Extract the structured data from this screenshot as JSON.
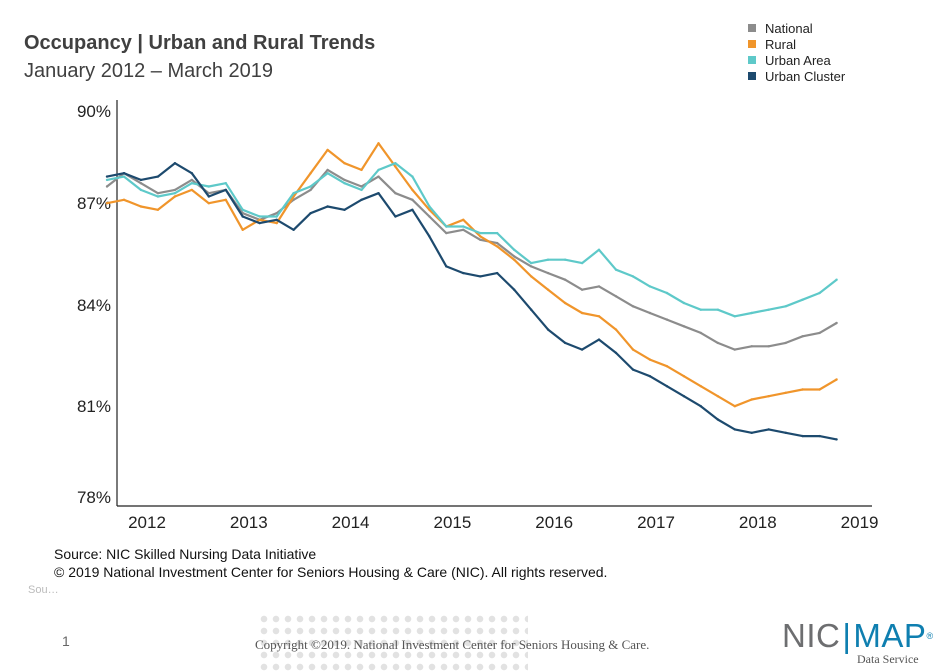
{
  "header": {
    "title": "Occupancy | Urban and Rural Trends",
    "subtitle": "January 2012 – March 2019"
  },
  "legend": [
    {
      "name": "National",
      "color": "#8c8c8c"
    },
    {
      "name": "Rural",
      "color": "#f0952b"
    },
    {
      "name": "Urban Area",
      "color": "#5ec9c9"
    },
    {
      "name": "Urban Cluster",
      "color": "#1d4a6e"
    }
  ],
  "chart_data": {
    "type": "line",
    "title": "Occupancy | Urban and Rural Trends",
    "subtitle": "January 2012 – March 2019",
    "x_start": "2012-01",
    "x_end": "2019-03",
    "x_ticks": [
      "2012",
      "2013",
      "2014",
      "2015",
      "2016",
      "2017",
      "2018",
      "2019"
    ],
    "y_ticks": [
      "78%",
      "81%",
      "84%",
      "87%",
      "90%"
    ],
    "ylim": [
      78,
      90
    ],
    "grid": false,
    "legend_position": "top-right",
    "series": [
      {
        "name": "National",
        "color": "#8c8c8c",
        "values": [
          {
            "x": "2012-01",
            "y": 87.7
          },
          {
            "x": "2012-03",
            "y": 88.1
          },
          {
            "x": "2012-05",
            "y": 87.8
          },
          {
            "x": "2012-07",
            "y": 87.5
          },
          {
            "x": "2012-09",
            "y": 87.6
          },
          {
            "x": "2012-11",
            "y": 87.9
          },
          {
            "x": "2013-01",
            "y": 87.5
          },
          {
            "x": "2013-03",
            "y": 87.6
          },
          {
            "x": "2013-05",
            "y": 86.9
          },
          {
            "x": "2013-07",
            "y": 86.7
          },
          {
            "x": "2013-09",
            "y": 86.9
          },
          {
            "x": "2013-11",
            "y": 87.3
          },
          {
            "x": "2014-01",
            "y": 87.6
          },
          {
            "x": "2014-03",
            "y": 88.2
          },
          {
            "x": "2014-05",
            "y": 87.9
          },
          {
            "x": "2014-07",
            "y": 87.7
          },
          {
            "x": "2014-09",
            "y": 88.0
          },
          {
            "x": "2014-11",
            "y": 87.5
          },
          {
            "x": "2015-01",
            "y": 87.3
          },
          {
            "x": "2015-03",
            "y": 86.8
          },
          {
            "x": "2015-05",
            "y": 86.3
          },
          {
            "x": "2015-07",
            "y": 86.4
          },
          {
            "x": "2015-09",
            "y": 86.1
          },
          {
            "x": "2015-11",
            "y": 86.0
          },
          {
            "x": "2016-01",
            "y": 85.6
          },
          {
            "x": "2016-03",
            "y": 85.3
          },
          {
            "x": "2016-05",
            "y": 85.1
          },
          {
            "x": "2016-07",
            "y": 84.9
          },
          {
            "x": "2016-09",
            "y": 84.6
          },
          {
            "x": "2016-11",
            "y": 84.7
          },
          {
            "x": "2017-01",
            "y": 84.4
          },
          {
            "x": "2017-03",
            "y": 84.1
          },
          {
            "x": "2017-05",
            "y": 83.9
          },
          {
            "x": "2017-07",
            "y": 83.7
          },
          {
            "x": "2017-09",
            "y": 83.5
          },
          {
            "x": "2017-11",
            "y": 83.3
          },
          {
            "x": "2018-01",
            "y": 83.0
          },
          {
            "x": "2018-03",
            "y": 82.8
          },
          {
            "x": "2018-05",
            "y": 82.9
          },
          {
            "x": "2018-07",
            "y": 82.9
          },
          {
            "x": "2018-09",
            "y": 83.0
          },
          {
            "x": "2018-11",
            "y": 83.2
          },
          {
            "x": "2019-01",
            "y": 83.3
          },
          {
            "x": "2019-03",
            "y": 83.6
          }
        ]
      },
      {
        "name": "Rural",
        "color": "#f0952b",
        "values": [
          {
            "x": "2012-01",
            "y": 87.2
          },
          {
            "x": "2012-03",
            "y": 87.3
          },
          {
            "x": "2012-05",
            "y": 87.1
          },
          {
            "x": "2012-07",
            "y": 87.0
          },
          {
            "x": "2012-09",
            "y": 87.4
          },
          {
            "x": "2012-11",
            "y": 87.6
          },
          {
            "x": "2013-01",
            "y": 87.2
          },
          {
            "x": "2013-03",
            "y": 87.3
          },
          {
            "x": "2013-05",
            "y": 86.4
          },
          {
            "x": "2013-07",
            "y": 86.7
          },
          {
            "x": "2013-09",
            "y": 86.6
          },
          {
            "x": "2013-11",
            "y": 87.4
          },
          {
            "x": "2014-01",
            "y": 88.1
          },
          {
            "x": "2014-03",
            "y": 88.8
          },
          {
            "x": "2014-05",
            "y": 88.4
          },
          {
            "x": "2014-07",
            "y": 88.2
          },
          {
            "x": "2014-09",
            "y": 89.0
          },
          {
            "x": "2014-11",
            "y": 88.3
          },
          {
            "x": "2015-01",
            "y": 87.6
          },
          {
            "x": "2015-03",
            "y": 87.0
          },
          {
            "x": "2015-05",
            "y": 86.5
          },
          {
            "x": "2015-07",
            "y": 86.7
          },
          {
            "x": "2015-09",
            "y": 86.2
          },
          {
            "x": "2015-11",
            "y": 85.9
          },
          {
            "x": "2016-01",
            "y": 85.5
          },
          {
            "x": "2016-03",
            "y": 85.0
          },
          {
            "x": "2016-05",
            "y": 84.6
          },
          {
            "x": "2016-07",
            "y": 84.2
          },
          {
            "x": "2016-09",
            "y": 83.9
          },
          {
            "x": "2016-11",
            "y": 83.8
          },
          {
            "x": "2017-01",
            "y": 83.4
          },
          {
            "x": "2017-03",
            "y": 82.8
          },
          {
            "x": "2017-05",
            "y": 82.5
          },
          {
            "x": "2017-07",
            "y": 82.3
          },
          {
            "x": "2017-09",
            "y": 82.0
          },
          {
            "x": "2017-11",
            "y": 81.7
          },
          {
            "x": "2018-01",
            "y": 81.4
          },
          {
            "x": "2018-03",
            "y": 81.1
          },
          {
            "x": "2018-05",
            "y": 81.3
          },
          {
            "x": "2018-07",
            "y": 81.4
          },
          {
            "x": "2018-09",
            "y": 81.5
          },
          {
            "x": "2018-11",
            "y": 81.6
          },
          {
            "x": "2019-01",
            "y": 81.6
          },
          {
            "x": "2019-03",
            "y": 81.9
          }
        ]
      },
      {
        "name": "Urban Area",
        "color": "#5ec9c9",
        "values": [
          {
            "x": "2012-01",
            "y": 87.9
          },
          {
            "x": "2012-03",
            "y": 88.0
          },
          {
            "x": "2012-05",
            "y": 87.6
          },
          {
            "x": "2012-07",
            "y": 87.4
          },
          {
            "x": "2012-09",
            "y": 87.5
          },
          {
            "x": "2012-11",
            "y": 87.8
          },
          {
            "x": "2013-01",
            "y": 87.7
          },
          {
            "x": "2013-03",
            "y": 87.8
          },
          {
            "x": "2013-05",
            "y": 87.0
          },
          {
            "x": "2013-07",
            "y": 86.8
          },
          {
            "x": "2013-09",
            "y": 86.8
          },
          {
            "x": "2013-11",
            "y": 87.5
          },
          {
            "x": "2014-01",
            "y": 87.7
          },
          {
            "x": "2014-03",
            "y": 88.1
          },
          {
            "x": "2014-05",
            "y": 87.8
          },
          {
            "x": "2014-07",
            "y": 87.6
          },
          {
            "x": "2014-09",
            "y": 88.2
          },
          {
            "x": "2014-11",
            "y": 88.4
          },
          {
            "x": "2015-01",
            "y": 88.0
          },
          {
            "x": "2015-03",
            "y": 87.1
          },
          {
            "x": "2015-05",
            "y": 86.5
          },
          {
            "x": "2015-07",
            "y": 86.5
          },
          {
            "x": "2015-09",
            "y": 86.3
          },
          {
            "x": "2015-11",
            "y": 86.3
          },
          {
            "x": "2016-01",
            "y": 85.8
          },
          {
            "x": "2016-03",
            "y": 85.4
          },
          {
            "x": "2016-05",
            "y": 85.5
          },
          {
            "x": "2016-07",
            "y": 85.5
          },
          {
            "x": "2016-09",
            "y": 85.4
          },
          {
            "x": "2016-11",
            "y": 85.8
          },
          {
            "x": "2017-01",
            "y": 85.2
          },
          {
            "x": "2017-03",
            "y": 85.0
          },
          {
            "x": "2017-05",
            "y": 84.7
          },
          {
            "x": "2017-07",
            "y": 84.5
          },
          {
            "x": "2017-09",
            "y": 84.2
          },
          {
            "x": "2017-11",
            "y": 84.0
          },
          {
            "x": "2018-01",
            "y": 84.0
          },
          {
            "x": "2018-03",
            "y": 83.8
          },
          {
            "x": "2018-05",
            "y": 83.9
          },
          {
            "x": "2018-07",
            "y": 84.0
          },
          {
            "x": "2018-09",
            "y": 84.1
          },
          {
            "x": "2018-11",
            "y": 84.3
          },
          {
            "x": "2019-01",
            "y": 84.5
          },
          {
            "x": "2019-03",
            "y": 84.9
          }
        ]
      },
      {
        "name": "Urban Cluster",
        "color": "#1d4a6e",
        "values": [
          {
            "x": "2012-01",
            "y": 88.0
          },
          {
            "x": "2012-03",
            "y": 88.1
          },
          {
            "x": "2012-05",
            "y": 87.9
          },
          {
            "x": "2012-07",
            "y": 88.0
          },
          {
            "x": "2012-09",
            "y": 88.4
          },
          {
            "x": "2012-11",
            "y": 88.1
          },
          {
            "x": "2013-01",
            "y": 87.4
          },
          {
            "x": "2013-03",
            "y": 87.6
          },
          {
            "x": "2013-05",
            "y": 86.8
          },
          {
            "x": "2013-07",
            "y": 86.6
          },
          {
            "x": "2013-09",
            "y": 86.7
          },
          {
            "x": "2013-11",
            "y": 86.4
          },
          {
            "x": "2014-01",
            "y": 86.9
          },
          {
            "x": "2014-03",
            "y": 87.1
          },
          {
            "x": "2014-05",
            "y": 87.0
          },
          {
            "x": "2014-07",
            "y": 87.3
          },
          {
            "x": "2014-09",
            "y": 87.5
          },
          {
            "x": "2014-11",
            "y": 86.8
          },
          {
            "x": "2015-01",
            "y": 87.0
          },
          {
            "x": "2015-03",
            "y": 86.2
          },
          {
            "x": "2015-05",
            "y": 85.3
          },
          {
            "x": "2015-07",
            "y": 85.1
          },
          {
            "x": "2015-09",
            "y": 85.0
          },
          {
            "x": "2015-11",
            "y": 85.1
          },
          {
            "x": "2016-01",
            "y": 84.6
          },
          {
            "x": "2016-03",
            "y": 84.0
          },
          {
            "x": "2016-05",
            "y": 83.4
          },
          {
            "x": "2016-07",
            "y": 83.0
          },
          {
            "x": "2016-09",
            "y": 82.8
          },
          {
            "x": "2016-11",
            "y": 83.1
          },
          {
            "x": "2017-01",
            "y": 82.7
          },
          {
            "x": "2017-03",
            "y": 82.2
          },
          {
            "x": "2017-05",
            "y": 82.0
          },
          {
            "x": "2017-07",
            "y": 81.7
          },
          {
            "x": "2017-09",
            "y": 81.4
          },
          {
            "x": "2017-11",
            "y": 81.1
          },
          {
            "x": "2018-01",
            "y": 80.7
          },
          {
            "x": "2018-03",
            "y": 80.4
          },
          {
            "x": "2018-05",
            "y": 80.3
          },
          {
            "x": "2018-07",
            "y": 80.4
          },
          {
            "x": "2018-09",
            "y": 80.3
          },
          {
            "x": "2018-11",
            "y": 80.2
          },
          {
            "x": "2019-01",
            "y": 80.2
          },
          {
            "x": "2019-03",
            "y": 80.1
          }
        ]
      }
    ]
  },
  "footer": {
    "source_line": "Source: NIC Skilled Nursing Data Initiative",
    "rights_line": "© 2019 National Investment Center for Seniors Housing & Care (NIC). All rights reserved.",
    "page_number": "1",
    "copyright": "Copyright ©2019. National Investment Center for Seniors Housing & Care.",
    "logo_nic": "NIC",
    "logo_map": "MAP",
    "logo_reg": "®",
    "logo_sub": "Data Service"
  }
}
